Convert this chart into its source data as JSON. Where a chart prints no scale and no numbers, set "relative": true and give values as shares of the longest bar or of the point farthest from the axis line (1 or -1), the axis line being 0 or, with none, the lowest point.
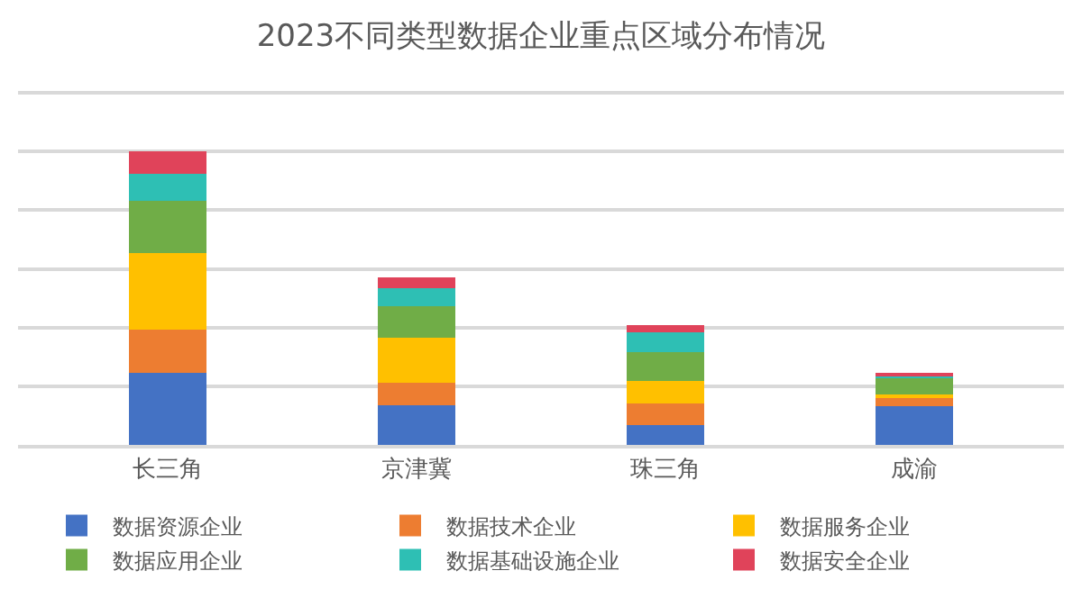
{
  "chart_data": {
    "type": "bar",
    "title": "2023不同类型数据企业重点区域分布情况",
    "categories": [
      "长三角",
      "京津冀",
      "珠三角",
      "成渝"
    ],
    "stacked": true,
    "relative": true,
    "grid": "y",
    "legend": "bottom",
    "series": [
      {
        "name": "数据资源企业",
        "color": "#4472c4",
        "values": [
          0.247,
          0.136,
          0.068,
          0.133
        ]
      },
      {
        "name": "数据技术企业",
        "color": "#ed7d31",
        "values": [
          0.145,
          0.077,
          0.073,
          0.031
        ]
      },
      {
        "name": "数据服务企业",
        "color": "#ffc000",
        "values": [
          0.262,
          0.153,
          0.077,
          0.007
        ]
      },
      {
        "name": "数据应用企业",
        "color": "#70ad47",
        "values": [
          0.177,
          0.107,
          0.097,
          0.061
        ]
      },
      {
        "name": "数据基础设施企业",
        "color": "#2ebfb4",
        "values": [
          0.092,
          0.061,
          0.068,
          0.005
        ]
      },
      {
        "name": "数据安全企业",
        "color": "#e0435a",
        "values": [
          0.077,
          0.036,
          0.024,
          0.005
        ]
      }
    ]
  }
}
